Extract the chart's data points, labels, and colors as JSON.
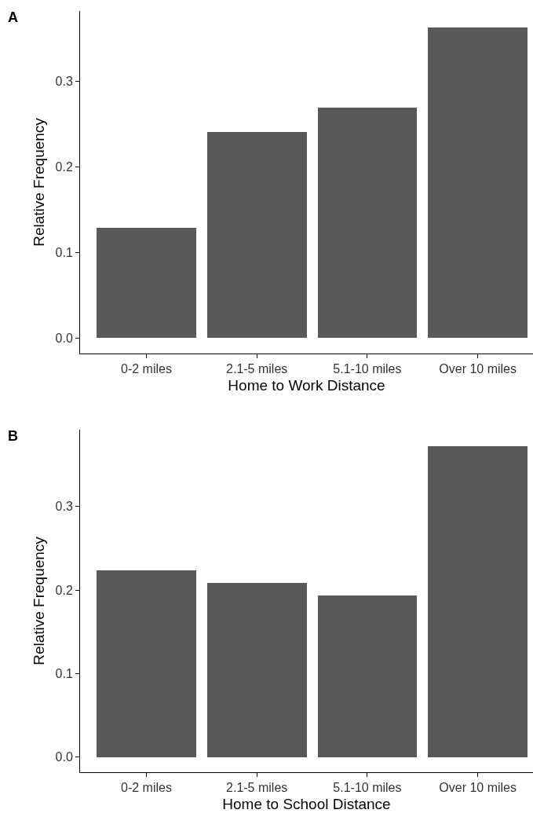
{
  "chart_data": [
    {
      "type": "bar",
      "title": "A",
      "xlabel": "Home to Work Distance",
      "ylabel": "Relative Frequency",
      "categories": [
        "0-2 miles",
        "2.1-5 miles",
        "5.1-10 miles",
        "Over 10 miles"
      ],
      "values": [
        0.129,
        0.241,
        0.269,
        0.363
      ],
      "color": "#595959",
      "ylim": [
        -0.018,
        0.382
      ],
      "yticks": [
        {
          "value": 0,
          "label": "0.0"
        },
        0.1,
        0.2,
        0.3
      ],
      "grid": false
    },
    {
      "type": "bar",
      "title": "B",
      "xlabel": "Home to School Distance",
      "ylabel": "Relative Frequency",
      "categories": [
        "0-2 miles",
        "2.1-5 miles",
        "5.1-10 miles",
        "Over 10 miles"
      ],
      "values": [
        0.224,
        0.209,
        0.194,
        0.372
      ],
      "color": "#595959",
      "ylim": [
        -0.018,
        0.392
      ],
      "yticks": [
        {
          "value": 0,
          "label": "0.0"
        },
        0.1,
        0.2,
        0.3
      ],
      "grid": false
    }
  ]
}
